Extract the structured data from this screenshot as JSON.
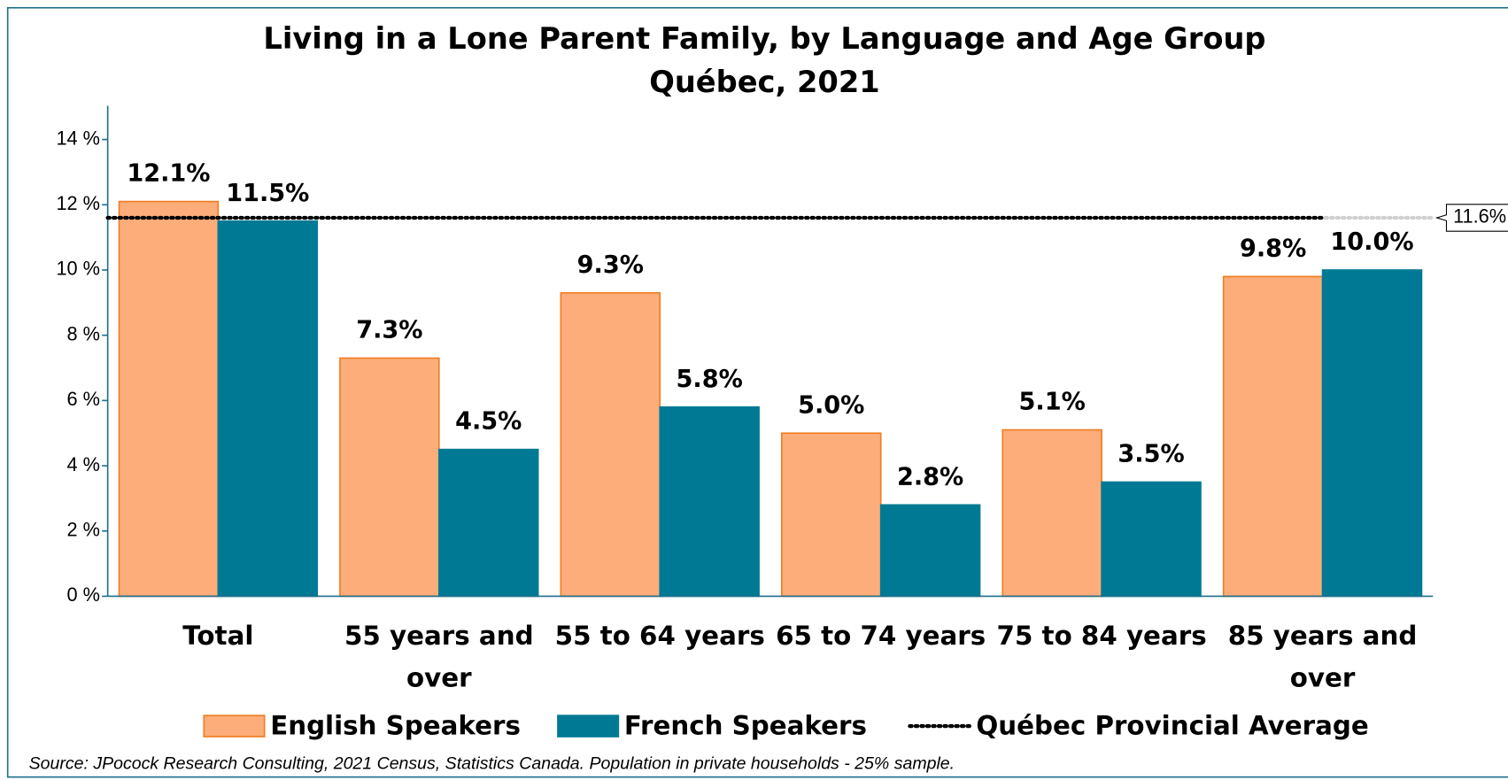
{
  "chart_data": {
    "type": "bar",
    "title": "Living in a Lone Parent Family, by Language and Age Group",
    "subtitle": "Québec, 2021",
    "categories": [
      "Total",
      "55 years and over",
      "55 to 64 years",
      "65 to 74 years",
      "75 to 84 years",
      "85 years and over"
    ],
    "series": [
      {
        "name": "English Speakers",
        "color": "#fcad7a",
        "values": [
          12.1,
          7.3,
          9.3,
          5.0,
          5.1,
          9.8
        ],
        "value_labels": [
          "12.1%",
          "7.3%",
          "9.3%",
          "5.0%",
          "5.1%",
          "9.8%"
        ]
      },
      {
        "name": "French Speakers",
        "color": "#007a94",
        "values": [
          11.5,
          4.5,
          5.8,
          2.8,
          3.5,
          10.0
        ],
        "value_labels": [
          "11.5%",
          "4.5%",
          "5.8%",
          "2.8%",
          "3.5%",
          "10.0%"
        ]
      }
    ],
    "reference_line": {
      "name": "Québec Provincial Average",
      "value": 11.6,
      "label": "11.6%",
      "color": "#000000"
    },
    "ylim": [
      0,
      14
    ],
    "yticks": [
      {
        "value": 0,
        "label": "0 %"
      },
      {
        "value": 2,
        "label": "2 %"
      },
      {
        "value": 4,
        "label": "4 %"
      },
      {
        "value": 6,
        "label": "6 %"
      },
      {
        "value": 8,
        "label": "8 %"
      },
      {
        "value": 10,
        "label": "10 %"
      },
      {
        "value": 12,
        "label": "12 %"
      },
      {
        "value": 14,
        "label": "14 %"
      }
    ],
    "source": "Source: JPocock Research Consulting, 2021 Census, Statistics Canada. Population in private households - 25% sample."
  }
}
